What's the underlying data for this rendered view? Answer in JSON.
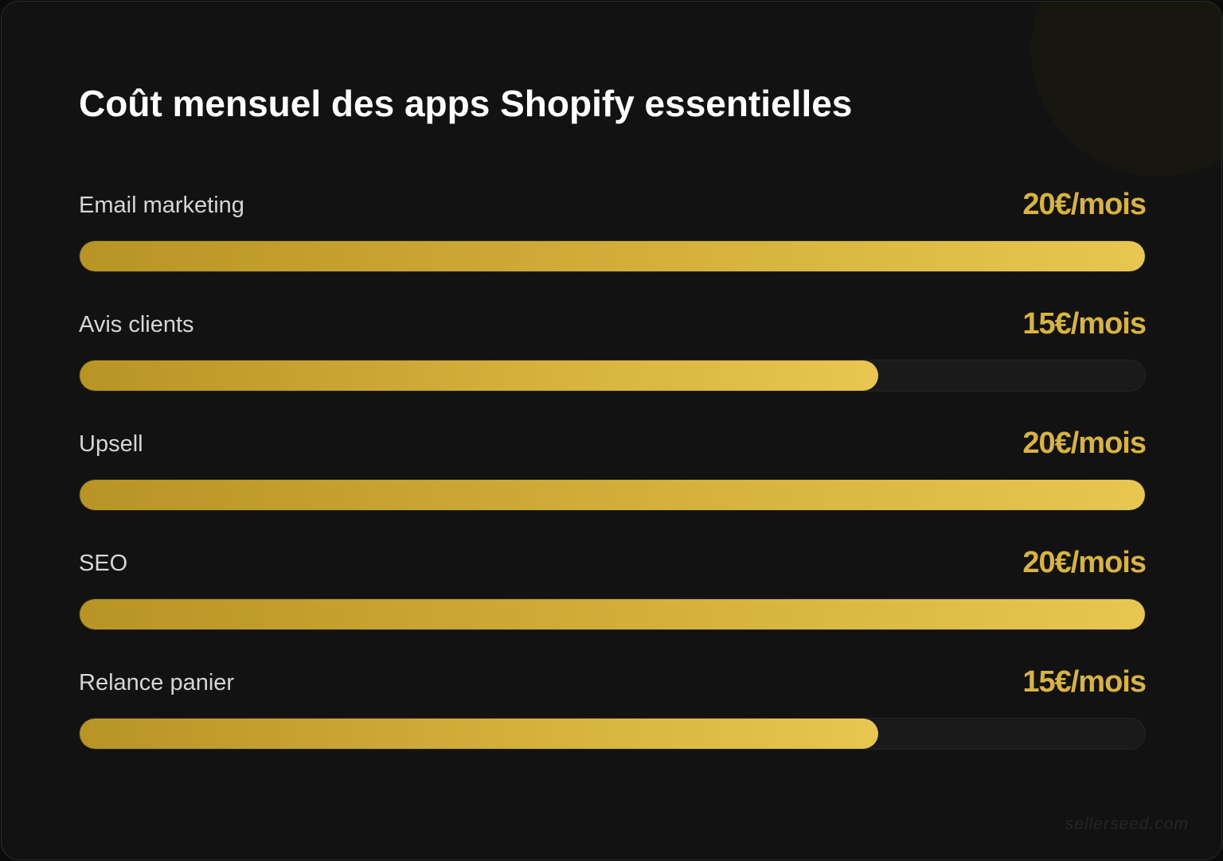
{
  "chart_data": {
    "type": "bar",
    "orientation": "horizontal",
    "title": "Coût mensuel des apps Shopify essentielles",
    "categories": [
      "Email marketing",
      "Avis clients",
      "Upsell",
      "SEO",
      "Relance panier"
    ],
    "values": [
      20,
      15,
      20,
      20,
      15
    ],
    "value_labels": [
      "20€/mois",
      "15€/mois",
      "20€/mois",
      "20€/mois",
      "15€/mois"
    ],
    "unit": "€/mois",
    "xlim": [
      0,
      20
    ],
    "grid": false,
    "legend": "none",
    "colors": {
      "bar_start": "#b89425",
      "bar_end": "#e8c650",
      "value_text": "#d9b340",
      "track": "#1a1a1a",
      "background": "#121212"
    }
  },
  "watermark": "sellerseed.com"
}
